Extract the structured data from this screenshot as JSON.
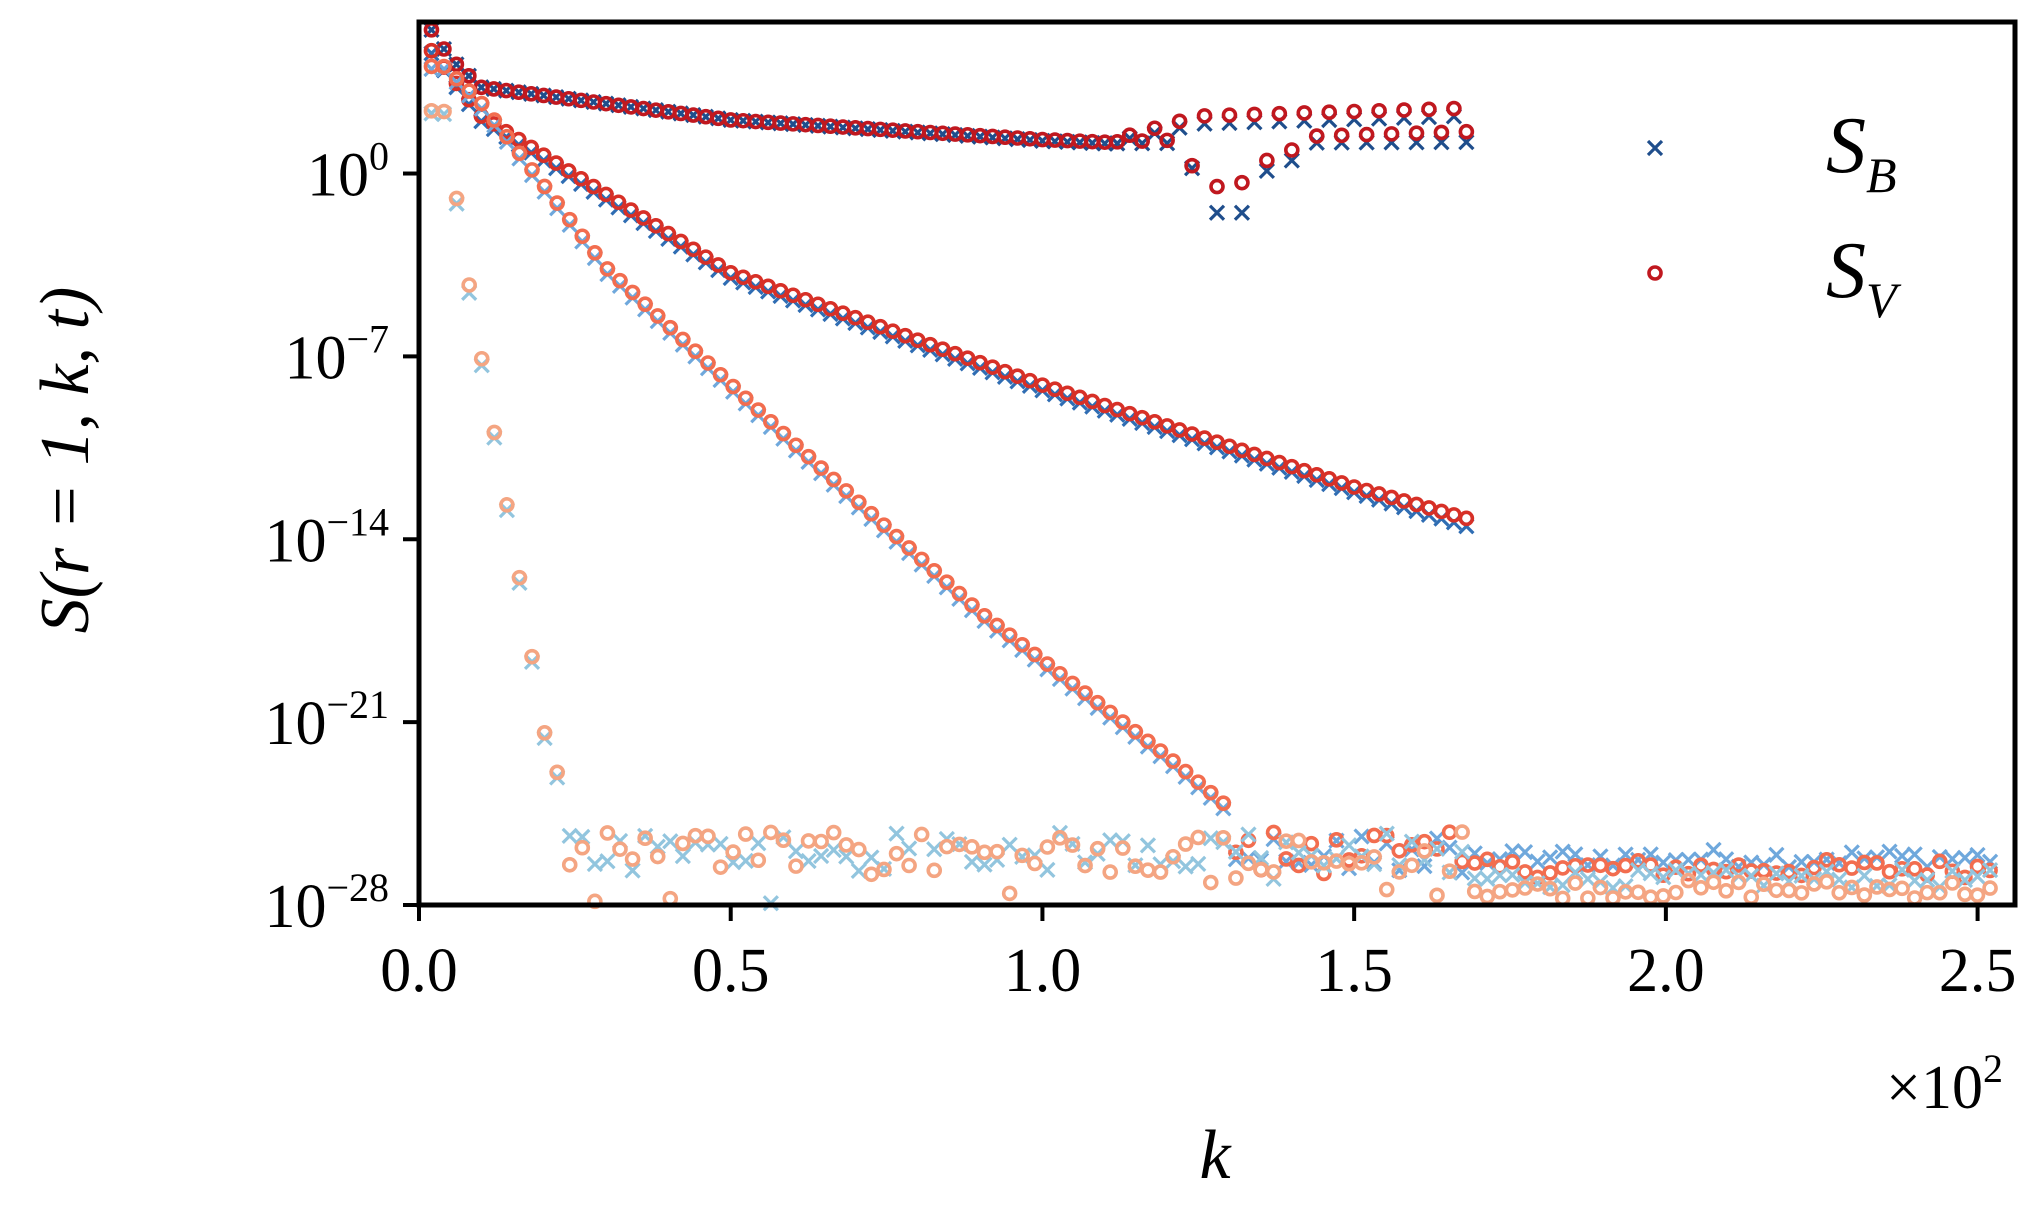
{
  "chart_data": {
    "type": "scatter",
    "title": "",
    "xlabel": "k",
    "ylabel": "S(r = 1, k, t)",
    "x_multiplier_label": "×10²",
    "x_multiplier_base": "×10",
    "x_multiplier_exp": "2",
    "xlim": [
      0,
      2.56
    ],
    "ylim_log10": [
      -28,
      5.8
    ],
    "yscale": "log",
    "grid": false,
    "legend_position": "top-right",
    "x_ticks": [
      {
        "value": 0.0,
        "label": "0.0"
      },
      {
        "value": 0.5,
        "label": "0.5"
      },
      {
        "value": 1.0,
        "label": "1.0"
      },
      {
        "value": 1.5,
        "label": "1.5"
      },
      {
        "value": 2.0,
        "label": "2.0"
      },
      {
        "value": 2.5,
        "label": "2.5"
      }
    ],
    "y_ticks": [
      {
        "log10": 0,
        "base": "10",
        "exp": "0"
      },
      {
        "log10": -7,
        "base": "10",
        "exp": "−7"
      },
      {
        "log10": -14,
        "base": "10",
        "exp": "−14"
      },
      {
        "log10": -21,
        "base": "10",
        "exp": "−21"
      },
      {
        "log10": -28,
        "base": "10",
        "exp": "−28"
      }
    ],
    "legend": [
      {
        "key": "B",
        "label_main": "S",
        "label_sub": "B",
        "marker": "x",
        "color": "#1f4e8c"
      },
      {
        "key": "V",
        "label_main": "S",
        "label_sub": "V",
        "marker": "o",
        "color": "#c0181f"
      }
    ],
    "noise_floor_log10": [
      -26.2,
      -26.6,
      -27.0,
      -27.4
    ],
    "series": [
      {
        "name": "S_B t1",
        "quantity": "B",
        "marker": "x",
        "color": "#1f4e8c",
        "x_range": [
          0.02,
          1.68
        ],
        "count": 84,
        "curve_log10": [
          [
            0.02,
            5.5
          ],
          [
            0.05,
            4.4
          ],
          [
            0.1,
            3.3
          ],
          [
            0.5,
            2.05
          ],
          [
            1.0,
            1.25
          ],
          [
            1.1,
            1.15
          ]
        ],
        "branches_after_1.1": {
          "upper": 2.2,
          "lower": 1.2,
          "dip": [
            [
              1.22,
              0.5
            ],
            [
              1.26,
              -0.1
            ],
            [
              1.3,
              -2.9
            ],
            [
              1.34,
              -0.1
            ],
            [
              1.4,
              0.5
            ]
          ]
        }
      },
      {
        "name": "S_V t1",
        "quantity": "V",
        "marker": "o",
        "color": "#c0181f",
        "x_range": [
          0.02,
          1.68
        ],
        "count": 84,
        "curve_log10": [
          [
            0.02,
            5.5
          ],
          [
            0.05,
            4.4
          ],
          [
            0.1,
            3.3
          ],
          [
            0.5,
            2.05
          ],
          [
            1.0,
            1.3
          ],
          [
            1.1,
            1.2
          ]
        ],
        "branches_after_1.1": {
          "upper": 2.5,
          "lower": 1.6,
          "dip": [
            [
              1.22,
              0.6
            ],
            [
              1.26,
              0.0
            ],
            [
              1.3,
              -1.0
            ],
            [
              1.34,
              0.3
            ],
            [
              1.4,
              0.9
            ]
          ]
        }
      },
      {
        "name": "S_B t2",
        "quantity": "B",
        "marker": "x",
        "color": "#2f6db3",
        "x_range": [
          0.02,
          1.68
        ],
        "count": 84,
        "curve_log10": [
          [
            0.02,
            4.6
          ],
          [
            0.1,
            2.0
          ],
          [
            0.5,
            -4.0
          ],
          [
            1.0,
            -8.3
          ],
          [
            1.5,
            -12.2
          ],
          [
            1.68,
            -13.5
          ]
        ]
      },
      {
        "name": "S_V t2",
        "quantity": "V",
        "marker": "o",
        "color": "#d73027",
        "x_range": [
          0.02,
          1.68
        ],
        "count": 84,
        "curve_log10": [
          [
            0.02,
            4.7
          ],
          [
            0.1,
            2.2
          ],
          [
            0.5,
            -3.8
          ],
          [
            1.0,
            -8.1
          ],
          [
            1.5,
            -12.0
          ],
          [
            1.68,
            -13.2
          ]
        ]
      },
      {
        "name": "S_B t3",
        "quantity": "B",
        "marker": "x",
        "color": "#6fa8dc",
        "x_range": [
          0.02,
          2.52
        ],
        "count": 125,
        "curve_log10": [
          [
            0.04,
            4.0
          ],
          [
            0.1,
            2.5
          ],
          [
            0.3,
            -3.8
          ],
          [
            0.6,
            -10.5
          ],
          [
            0.9,
            -17.0
          ],
          [
            1.2,
            -22.5
          ],
          [
            1.3,
            -24.5
          ]
        ]
      },
      {
        "name": "S_V t3",
        "quantity": "V",
        "marker": "o",
        "color": "#f26d4f",
        "x_range": [
          0.02,
          2.52
        ],
        "count": 125,
        "curve_log10": [
          [
            0.04,
            4.1
          ],
          [
            0.1,
            2.7
          ],
          [
            0.3,
            -3.6
          ],
          [
            0.6,
            -10.3
          ],
          [
            0.9,
            -16.8
          ],
          [
            1.2,
            -22.3
          ],
          [
            1.3,
            -24.3
          ]
        ]
      },
      {
        "name": "S_B t4",
        "quantity": "B",
        "marker": "x",
        "color": "#92c5de",
        "x_range": [
          0.02,
          2.52
        ],
        "count": 125,
        "curve_log10": [
          [
            0.04,
            2.3
          ],
          [
            0.08,
            -4.5
          ],
          [
            0.12,
            -10.0
          ],
          [
            0.16,
            -15.5
          ],
          [
            0.2,
            -21.5
          ],
          [
            0.24,
            -24.5
          ]
        ]
      },
      {
        "name": "S_V t4",
        "quantity": "V",
        "marker": "o",
        "color": "#f4a582",
        "x_range": [
          0.02,
          2.52
        ],
        "count": 125,
        "curve_log10": [
          [
            0.04,
            2.4
          ],
          [
            0.08,
            -4.2
          ],
          [
            0.12,
            -9.8
          ],
          [
            0.16,
            -15.3
          ],
          [
            0.2,
            -21.3
          ],
          [
            0.24,
            -24.3
          ]
        ]
      }
    ]
  }
}
